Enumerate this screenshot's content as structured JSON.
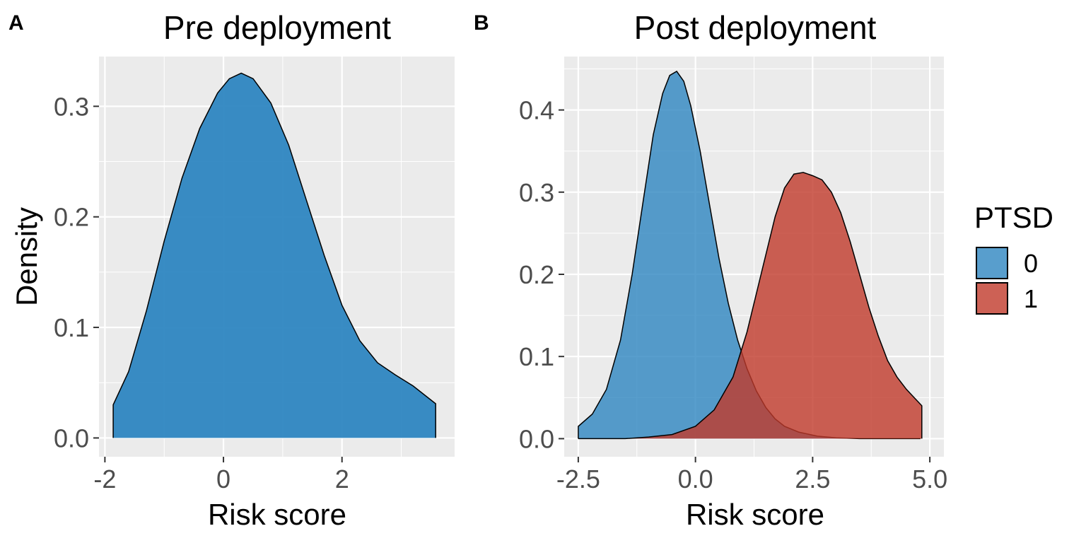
{
  "chart_data": [
    {
      "panel": "A",
      "type": "area",
      "title": "Pre deployment",
      "xlabel": "Risk score",
      "ylabel": "Density",
      "xlim": [
        -2.1,
        3.9
      ],
      "ylim": [
        -0.017,
        0.345
      ],
      "xticks": [
        -2,
        0,
        2
      ],
      "xtick_labels": [
        "-2",
        "0",
        "2"
      ],
      "yticks": [
        0.0,
        0.1,
        0.2,
        0.3
      ],
      "ytick_labels": [
        "0.0",
        "0.1",
        "0.2",
        "0.3"
      ],
      "series": [
        {
          "color": "#2e86c1",
          "x": [
            -1.86,
            -1.6,
            -1.3,
            -1.0,
            -0.7,
            -0.4,
            -0.1,
            0.1,
            0.3,
            0.5,
            0.8,
            1.1,
            1.4,
            1.7,
            2.0,
            2.3,
            2.6,
            2.9,
            3.2,
            3.58
          ],
          "y": [
            0.03,
            0.06,
            0.115,
            0.178,
            0.235,
            0.28,
            0.312,
            0.325,
            0.33,
            0.325,
            0.303,
            0.265,
            0.215,
            0.165,
            0.12,
            0.088,
            0.068,
            0.057,
            0.047,
            0.031
          ]
        }
      ]
    },
    {
      "panel": "B",
      "type": "area",
      "title": "Post deployment",
      "xlabel": "Risk score",
      "ylabel": "",
      "xlim": [
        -2.8,
        5.3
      ],
      "ylim": [
        -0.022,
        0.465
      ],
      "xticks": [
        -2.5,
        0.0,
        2.5,
        5.0
      ],
      "xtick_labels": [
        "-2.5",
        "0.0",
        "2.5",
        "5.0"
      ],
      "yticks": [
        0.0,
        0.1,
        0.2,
        0.3,
        0.4
      ],
      "ytick_labels": [
        "0.0",
        "0.1",
        "0.2",
        "0.3",
        "0.4"
      ],
      "legend": {
        "title": "PTSD",
        "position": "right"
      },
      "series": [
        {
          "name": "0",
          "color": "#2e86c1",
          "x": [
            -2.5,
            -2.2,
            -1.9,
            -1.6,
            -1.35,
            -1.1,
            -0.9,
            -0.7,
            -0.55,
            -0.4,
            -0.25,
            -0.1,
            0.1,
            0.3,
            0.5,
            0.7,
            0.9,
            1.1,
            1.3,
            1.5,
            1.7,
            1.9,
            2.2,
            2.6,
            3.0,
            3.5,
            4.0,
            4.8
          ],
          "y": [
            0.015,
            0.03,
            0.06,
            0.12,
            0.2,
            0.295,
            0.37,
            0.42,
            0.442,
            0.447,
            0.435,
            0.405,
            0.35,
            0.285,
            0.22,
            0.165,
            0.12,
            0.085,
            0.058,
            0.038,
            0.024,
            0.015,
            0.008,
            0.003,
            0.001,
            0.0,
            0.0,
            0.0
          ]
        },
        {
          "name": "1",
          "color": "#c0392b",
          "x": [
            -2.5,
            -1.5,
            -1.0,
            -0.5,
            0.0,
            0.4,
            0.8,
            1.1,
            1.4,
            1.7,
            1.9,
            2.1,
            2.3,
            2.5,
            2.7,
            2.9,
            3.1,
            3.3,
            3.5,
            3.7,
            3.9,
            4.1,
            4.3,
            4.5,
            4.83
          ],
          "y": [
            0.0,
            0.0,
            0.002,
            0.005,
            0.015,
            0.035,
            0.075,
            0.13,
            0.2,
            0.27,
            0.305,
            0.322,
            0.324,
            0.32,
            0.315,
            0.3,
            0.275,
            0.24,
            0.2,
            0.16,
            0.125,
            0.095,
            0.075,
            0.06,
            0.04
          ]
        }
      ]
    }
  ]
}
